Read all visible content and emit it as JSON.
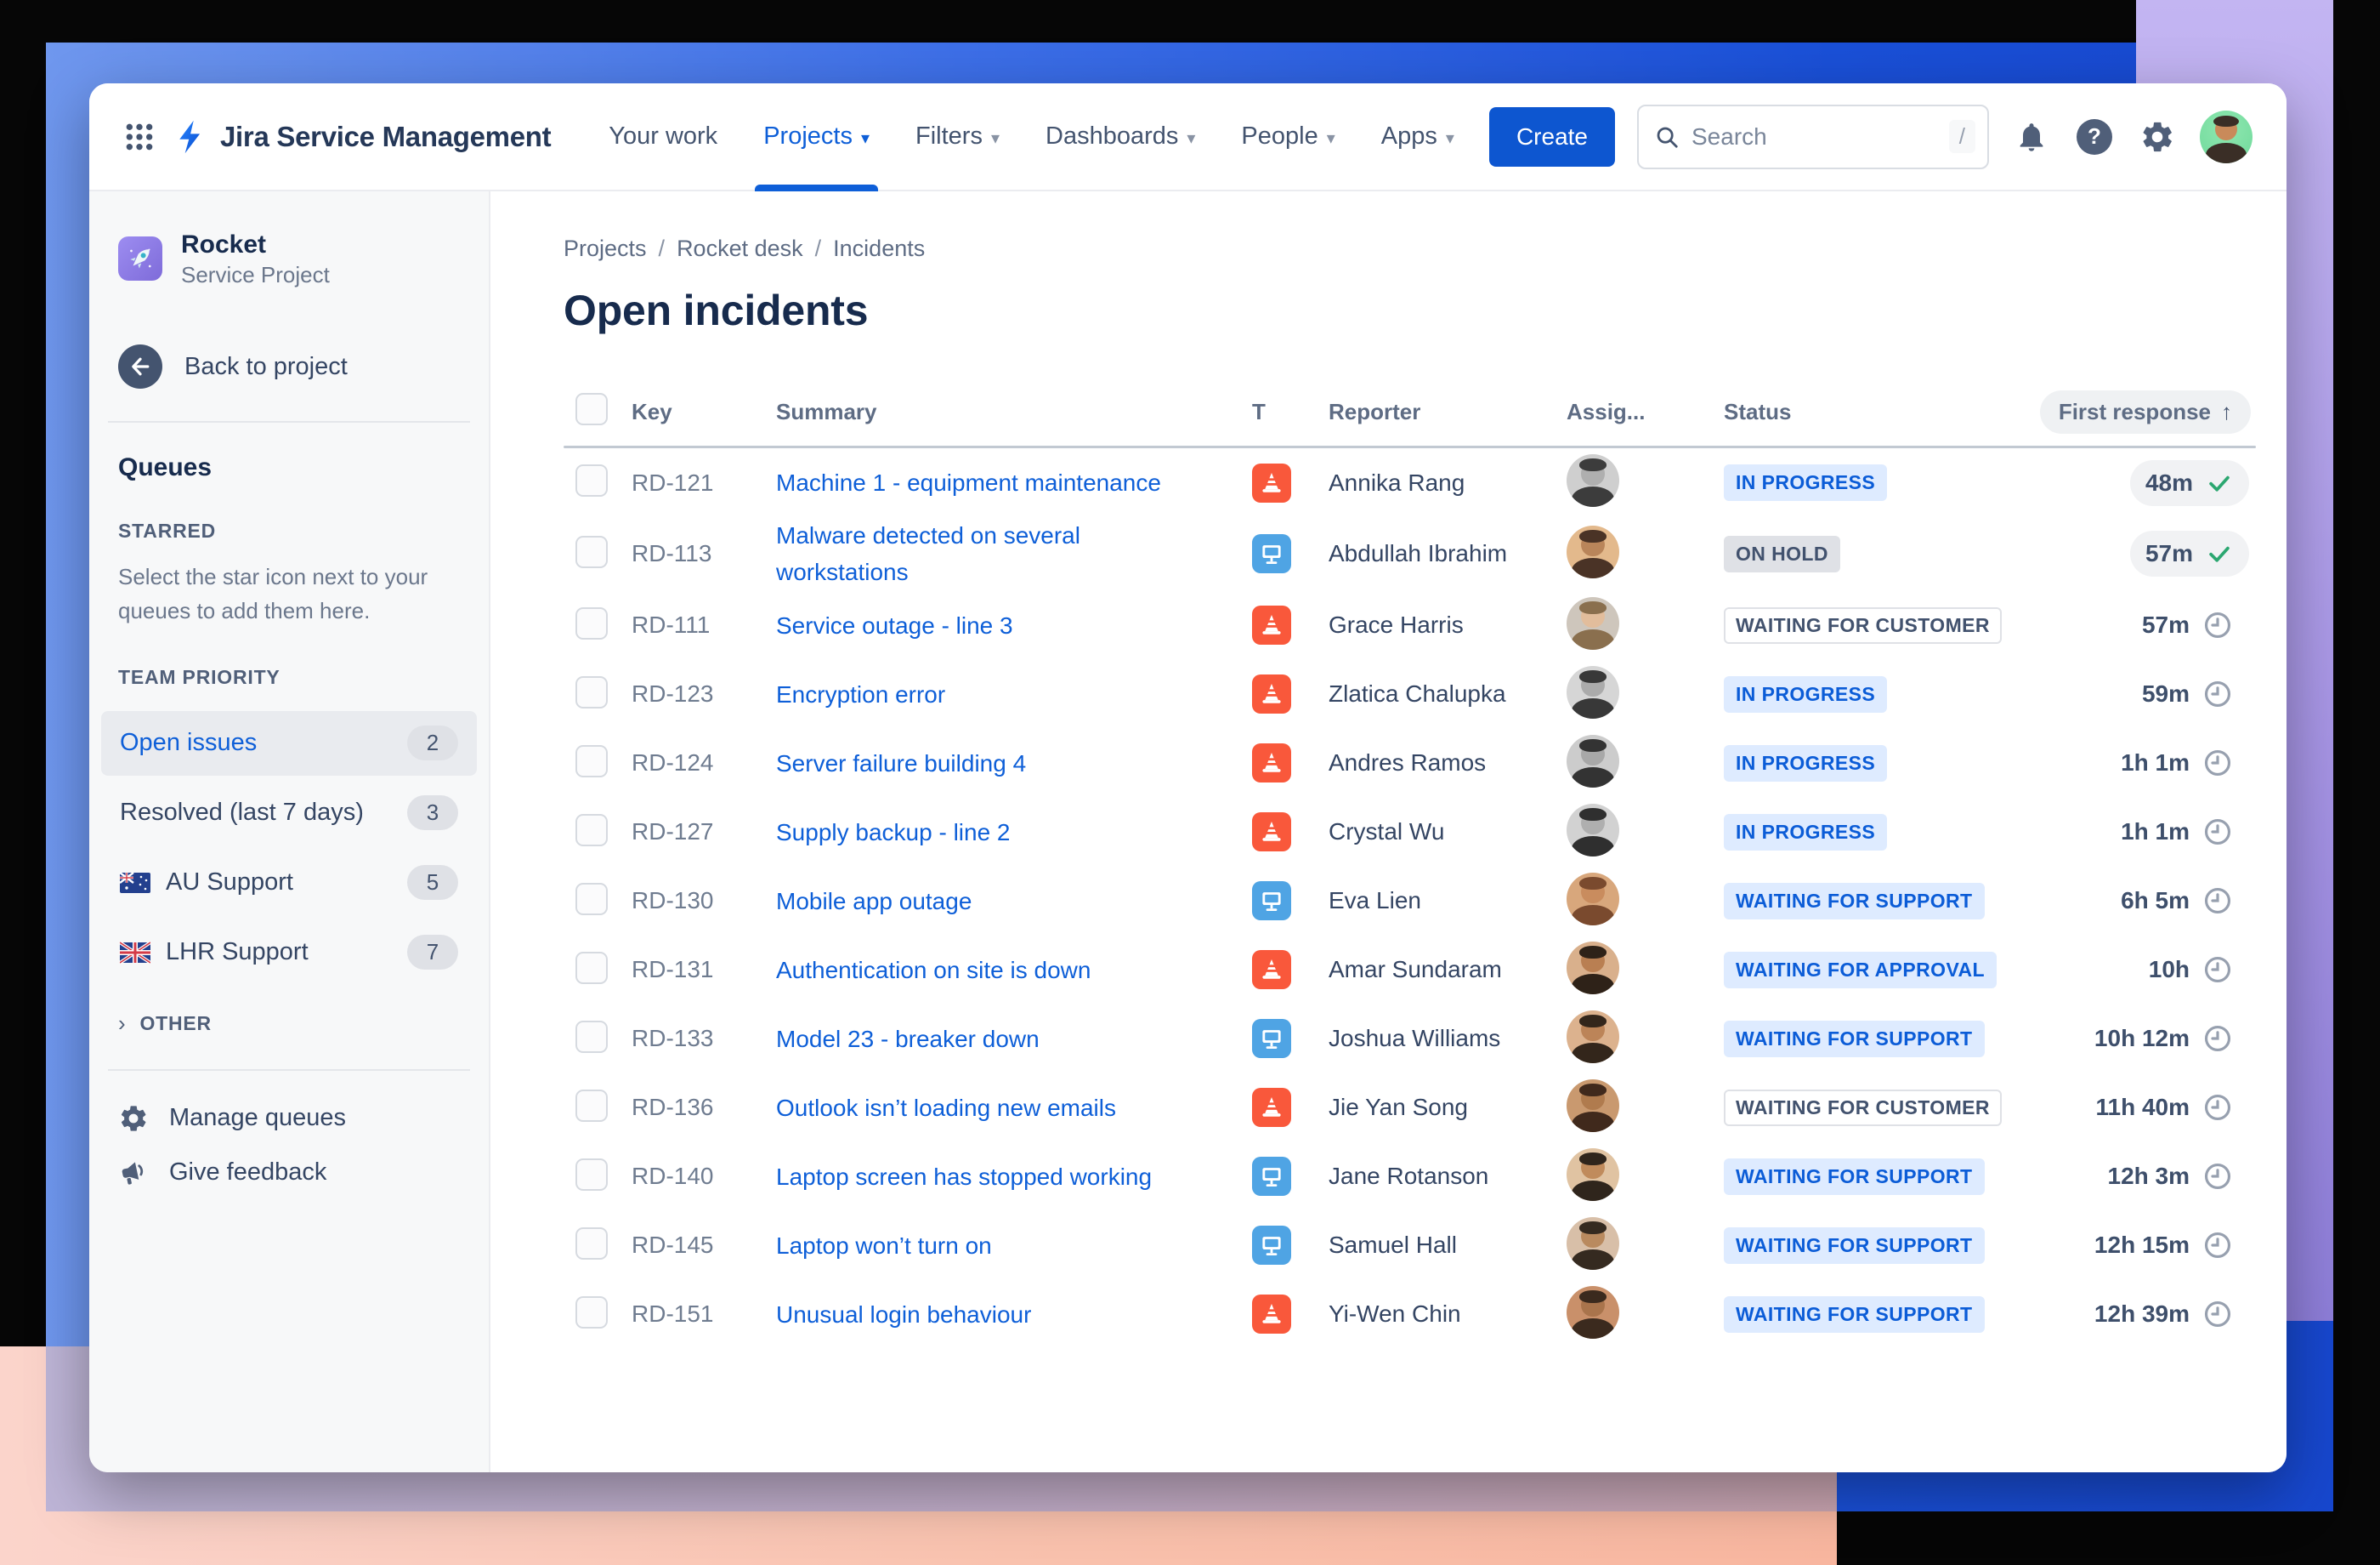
{
  "nav": {
    "product": "Jira Service Management",
    "items": [
      {
        "label": "Your work",
        "caret": false,
        "active": false
      },
      {
        "label": "Projects",
        "caret": true,
        "active": true
      },
      {
        "label": "Filters",
        "caret": true,
        "active": false
      },
      {
        "label": "Dashboards",
        "caret": true,
        "active": false
      },
      {
        "label": "People",
        "caret": true,
        "active": false
      },
      {
        "label": "Apps",
        "caret": true,
        "active": false
      }
    ],
    "create_label": "Create",
    "search_placeholder": "Search",
    "search_shortcut": "/"
  },
  "sidebar": {
    "project_name": "Rocket",
    "project_type": "Service Project",
    "back_label": "Back to project",
    "section_title": "Queues",
    "starred_heading": "STARRED",
    "starred_hint": "Select the star icon next to your queues to add them here.",
    "team_heading": "TEAM PRIORITY",
    "queues": [
      {
        "label": "Open issues",
        "count": "2",
        "selected": true,
        "flag": null
      },
      {
        "label": "Resolved (last 7 days)",
        "count": "3",
        "selected": false,
        "flag": null
      },
      {
        "label": "AU Support",
        "count": "5",
        "selected": false,
        "flag": "au"
      },
      {
        "label": "LHR Support",
        "count": "7",
        "selected": false,
        "flag": "gb"
      }
    ],
    "other_heading": "OTHER",
    "manage_label": "Manage queues",
    "feedback_label": "Give feedback"
  },
  "main": {
    "breadcrumbs": [
      "Projects",
      "Rocket desk",
      "Incidents"
    ],
    "title": "Open incidents",
    "table": {
      "columns": [
        "Key",
        "Summary",
        "T",
        "Reporter",
        "Assig...",
        "Status",
        "First response"
      ],
      "sort_column": "First response",
      "sort_direction": "asc",
      "rows": [
        {
          "key": "RD-121",
          "summary": "Machine 1 - equipment maintenance",
          "type": "incident",
          "reporter": "Annika Rang",
          "status": "IN PROGRESS",
          "status_variant": "blue",
          "response": "48m",
          "done": true,
          "avatar": {
            "bg": "#CFCFCF",
            "skin": "#AFAFAF",
            "dark": "#3C3C3C"
          }
        },
        {
          "key": "RD-113",
          "summary": "Malware detected on several workstations",
          "type": "request",
          "reporter": "Abdullah Ibrahim",
          "status": "ON HOLD",
          "status_variant": "gray",
          "response": "57m",
          "done": true,
          "avatar": {
            "bg": "#E3B98C",
            "skin": "#B9855A",
            "dark": "#4A3326"
          }
        },
        {
          "key": "RD-111",
          "summary": "Service outage - line 3",
          "type": "incident",
          "reporter": "Grace Harris",
          "status": "WAITING FOR CUSTOMER",
          "status_variant": "outline",
          "response": "57m",
          "done": false,
          "avatar": {
            "bg": "#CEC6BC",
            "skin": "#E2BD9C",
            "dark": "#8A6F4E"
          }
        },
        {
          "key": "RD-123",
          "summary": "Encryption error",
          "type": "incident",
          "reporter": "Zlatica Chalupka",
          "status": "IN PROGRESS",
          "status_variant": "blue",
          "response": "59m",
          "done": false,
          "avatar": {
            "bg": "#D6D6D6",
            "skin": "#ABABAB",
            "dark": "#383838"
          }
        },
        {
          "key": "RD-124",
          "summary": "Server failure building 4",
          "type": "incident",
          "reporter": "Andres Ramos",
          "status": "IN PROGRESS",
          "status_variant": "blue",
          "response": "1h 1m",
          "done": false,
          "avatar": {
            "bg": "#CCCCCC",
            "skin": "#A8A8A8",
            "dark": "#333333"
          }
        },
        {
          "key": "RD-127",
          "summary": "Supply backup - line 2",
          "type": "incident",
          "reporter": "Crystal Wu",
          "status": "IN PROGRESS",
          "status_variant": "blue",
          "response": "1h 1m",
          "done": false,
          "avatar": {
            "bg": "#D2D2D2",
            "skin": "#AFAFAF",
            "dark": "#2F2F2F"
          }
        },
        {
          "key": "RD-130",
          "summary": "Mobile app outage",
          "type": "request",
          "reporter": "Eva Lien",
          "status": "WAITING FOR SUPPORT",
          "status_variant": "blue",
          "response": "6h 5m",
          "done": false,
          "avatar": {
            "bg": "#D8A77C",
            "skin": "#C98C5E",
            "dark": "#7A4A2E"
          }
        },
        {
          "key": "RD-131",
          "summary": "Authentication on site is down",
          "type": "incident",
          "reporter": "Amar Sundaram",
          "status": "WAITING FOR APPROVAL",
          "status_variant": "blue",
          "response": "10h",
          "done": false,
          "avatar": {
            "bg": "#D9B08C",
            "skin": "#B97F52",
            "dark": "#2E2218"
          }
        },
        {
          "key": "RD-133",
          "summary": "Model 23 - breaker down",
          "type": "request",
          "reporter": "Joshua Williams",
          "status": "WAITING FOR SUPPORT",
          "status_variant": "blue",
          "response": "10h 12m",
          "done": false,
          "avatar": {
            "bg": "#DCB28E",
            "skin": "#BC8458",
            "dark": "#33261B"
          }
        },
        {
          "key": "RD-136",
          "summary": "Outlook isn’t loading new emails",
          "type": "incident",
          "reporter": "Jie Yan Song",
          "status": "WAITING FOR CUSTOMER",
          "status_variant": "outline",
          "response": "11h 40m",
          "done": false,
          "avatar": {
            "bg": "#C9996F",
            "skin": "#B07B4E",
            "dark": "#40291C"
          }
        },
        {
          "key": "RD-140",
          "summary": "Laptop screen has stopped working",
          "type": "request",
          "reporter": "Jane Rotanson",
          "status": "WAITING FOR SUPPORT",
          "status_variant": "blue",
          "response": "12h 3m",
          "done": false,
          "avatar": {
            "bg": "#E0C3A2",
            "skin": "#C08B5C",
            "dark": "#2F251C"
          }
        },
        {
          "key": "RD-145",
          "summary": "Laptop won’t turn on",
          "type": "request",
          "reporter": "Samuel Hall",
          "status": "WAITING FOR SUPPORT",
          "status_variant": "blue",
          "response": "12h 15m",
          "done": false,
          "avatar": {
            "bg": "#D8BFA8",
            "skin": "#B98A5F",
            "dark": "#352A20"
          }
        },
        {
          "key": "RD-151",
          "summary": "Unusual login behaviour",
          "type": "incident",
          "reporter": "Yi-Wen Chin",
          "status": "WAITING FOR SUPPORT",
          "status_variant": "blue",
          "response": "12h 39m",
          "done": false,
          "avatar": {
            "bg": "#C9906A",
            "skin": "#A9744C",
            "dark": "#3B2A1E"
          }
        }
      ]
    }
  }
}
